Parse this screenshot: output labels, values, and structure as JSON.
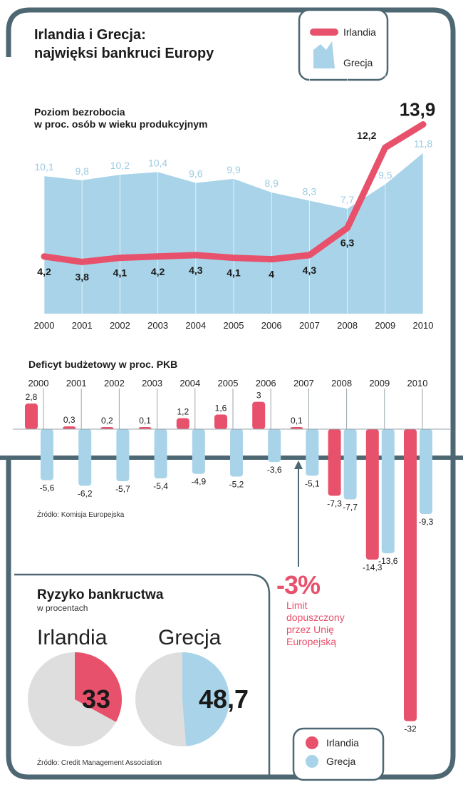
{
  "title": {
    "line1": "Irlandia i Grecja:",
    "line2": "najwięksi bankruci Europy"
  },
  "legend_top": {
    "ireland": "Irlandia",
    "greece": "Grecja"
  },
  "colors": {
    "ireland": "#e8516b",
    "greece": "#a8d3e8",
    "frame": "#4d6773",
    "limit_text": "#e8516b"
  },
  "chart_data": [
    {
      "type": "line",
      "title": "Poziom bezrobocia",
      "subtitle": "w proc. osób w wieku produkcyjnym",
      "categories": [
        "2000",
        "2001",
        "2002",
        "2003",
        "2004",
        "2005",
        "2006",
        "2007",
        "2008",
        "2009",
        "2010"
      ],
      "series": [
        {
          "name": "Irlandia",
          "style": "line",
          "values": [
            4.2,
            3.8,
            4.1,
            4.2,
            4.3,
            4.1,
            4.0,
            4.3,
            6.3,
            12.2,
            13.9
          ],
          "labels": [
            "4,2",
            "3,8",
            "4,1",
            "4,2",
            "4,3",
            "4,1",
            "4",
            "4,3",
            "6,3",
            "12,2",
            "13,9"
          ]
        },
        {
          "name": "Grecja",
          "style": "area",
          "values": [
            10.1,
            9.8,
            10.2,
            10.4,
            9.6,
            9.9,
            8.9,
            8.3,
            7.7,
            9.5,
            11.8
          ],
          "labels": [
            "10,1",
            "9,8",
            "10,2",
            "10,4",
            "9,6",
            "9,9",
            "8,9",
            "8,3",
            "7,7",
            "9,5",
            "11,8"
          ]
        }
      ],
      "ylim": [
        0,
        15
      ]
    },
    {
      "type": "bar",
      "title": "Deficyt budżetowy w proc. PKB",
      "categories": [
        "2000",
        "2001",
        "2002",
        "2003",
        "2004",
        "2005",
        "2006",
        "2007",
        "2008",
        "2009",
        "2010"
      ],
      "series": [
        {
          "name": "Irlandia",
          "values": [
            2.8,
            0.3,
            0.2,
            0.1,
            1.2,
            1.6,
            3.0,
            0.1,
            -7.3,
            -14.3,
            -32
          ],
          "labels": [
            "2,8",
            "0,3",
            "0,2",
            "0,1",
            "1,2",
            "1,6",
            "3",
            "0,1",
            "-7,3",
            "-14,3",
            "-32"
          ]
        },
        {
          "name": "Grecja",
          "values": [
            -5.6,
            -6.2,
            -5.7,
            -5.4,
            -4.9,
            -5.2,
            -3.6,
            -5.1,
            -7.7,
            -13.6,
            -9.3
          ],
          "labels": [
            "-5,6",
            "-6,2",
            "-5,7",
            "-5,4",
            "-4,9",
            "-5,2",
            "-3,6",
            "-5,1",
            "-7,7",
            "-13,6",
            "-9,3"
          ]
        }
      ],
      "annotation": {
        "value": -3,
        "big": "-3%",
        "text": "Limit dopuszczony przez Unię Europejską"
      },
      "source": "Źródło: Komisja Europejska"
    },
    {
      "type": "pie",
      "title": "Ryzyko bankructwa",
      "subtitle": "w procentach",
      "pies": [
        {
          "name": "Irlandia",
          "value": 33,
          "label": "33"
        },
        {
          "name": "Grecja",
          "value": 48.7,
          "label": "48,7"
        }
      ],
      "source": "Źródło: Credit Management Association"
    }
  ],
  "legend_bottom": {
    "ireland": "Irlandia",
    "greece": "Grecja"
  }
}
